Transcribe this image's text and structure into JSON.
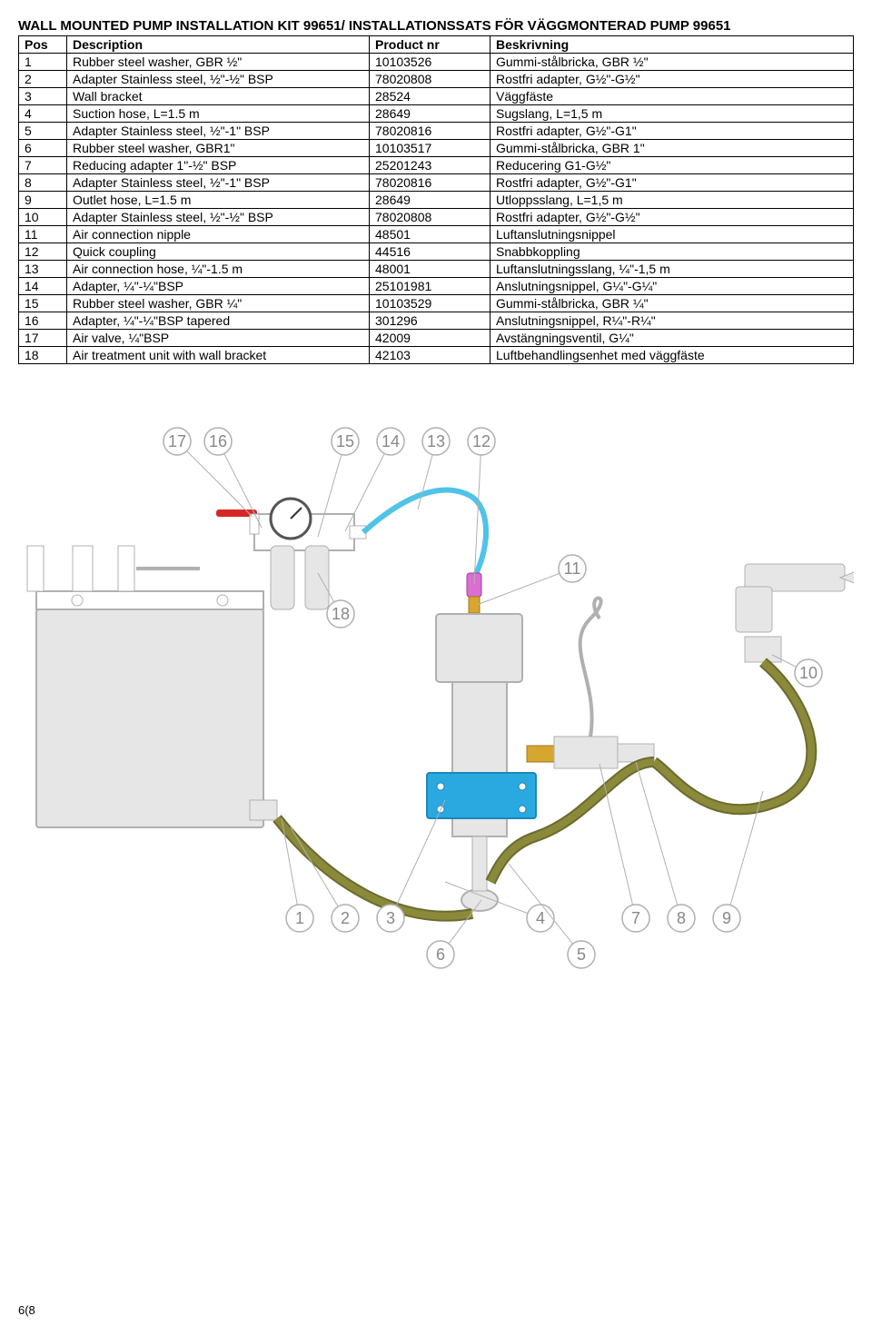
{
  "title": "WALL MOUNTED PUMP INSTALLATION KIT 99651/ INSTALLATIONSSATS FÖR VÄGGMONTERAD PUMP 99651",
  "columns": [
    "Pos",
    "Description",
    "Product nr",
    "Beskrivning"
  ],
  "rows": [
    [
      "1",
      "Rubber steel washer, GBR ½\"",
      "10103526",
      "Gummi-stålbricka, GBR ½\""
    ],
    [
      "2",
      "Adapter Stainless steel, ½\"-½\" BSP",
      "78020808",
      "Rostfri adapter, G½\"-G½\""
    ],
    [
      "3",
      "Wall bracket",
      "28524",
      "Väggfäste"
    ],
    [
      "4",
      "Suction hose, L=1.5 m",
      "28649",
      "Sugslang, L=1,5 m"
    ],
    [
      "5",
      "Adapter Stainless steel, ½\"-1\" BSP",
      "78020816",
      "Rostfri adapter, G½\"-G1\""
    ],
    [
      "6",
      "Rubber steel washer, GBR1\"",
      "10103517",
      "Gummi-stålbricka, GBR 1\""
    ],
    [
      "7",
      "Reducing adapter 1\"-½\" BSP",
      "25201243",
      "Reducering G1-G½\""
    ],
    [
      "8",
      "Adapter Stainless steel, ½\"-1\" BSP",
      "78020816",
      "Rostfri adapter, G½\"-G1\""
    ],
    [
      "9",
      "Outlet hose, L=1.5 m",
      "28649",
      "Utloppsslang, L=1,5 m"
    ],
    [
      "10",
      "Adapter Stainless steel, ½\"-½\" BSP",
      "78020808",
      "Rostfri adapter, G½\"-G½\""
    ],
    [
      "11",
      "Air connection nipple",
      "48501",
      "Luftanslutningsnippel"
    ],
    [
      "12",
      "Quick coupling",
      "44516",
      "Snabbkoppling"
    ],
    [
      "13",
      "Air connection hose, ¼\"-1.5 m",
      "48001",
      "Luftanslutningsslang, ¼\"-1,5 m"
    ],
    [
      "14",
      "Adapter, ¼\"-¼\"BSP",
      "25101981",
      "Anslutningsnippel, G¼\"-G¼\""
    ],
    [
      "15",
      "Rubber steel washer, GBR ¼\"",
      "10103529",
      "Gummi-stålbricka, GBR ¼\""
    ],
    [
      "16",
      "Adapter, ¼\"-¼\"BSP tapered",
      "301296",
      "Anslutningsnippel, R¼\"-R¼\""
    ],
    [
      "17",
      "Air valve, ¼\"BSP",
      "42009",
      "Avstängningsventil, G¼\""
    ],
    [
      "18",
      "Air treatment unit with wall bracket",
      "42103",
      "Luftbehandlingsenhet med väggfäste"
    ]
  ],
  "page_num": "6(8",
  "diagram": {
    "callouts_top": [
      "17",
      "16",
      "15",
      "14",
      "13",
      "12"
    ],
    "callouts_right": [
      "11",
      "10"
    ],
    "callouts_bottom": [
      "1",
      "2",
      "3",
      "4",
      "7",
      "8",
      "9",
      "6",
      "5"
    ],
    "callout_18": "18",
    "colors": {
      "outline_gray": "#b0b0b0",
      "fill_gray": "#e6e6e6",
      "bracket_blue": "#2aa8e0",
      "hose_blue": "#4fc3e8",
      "hose_olive": "#8a8a3a",
      "hose_olive_stroke": "#6b6b2e",
      "valve_red": "#d62728",
      "coupling_pink": "#d96fd0",
      "nipple_yellow": "#d6a62e",
      "callout_stroke": "#b0b0b0",
      "callout_text": "#888888"
    }
  }
}
